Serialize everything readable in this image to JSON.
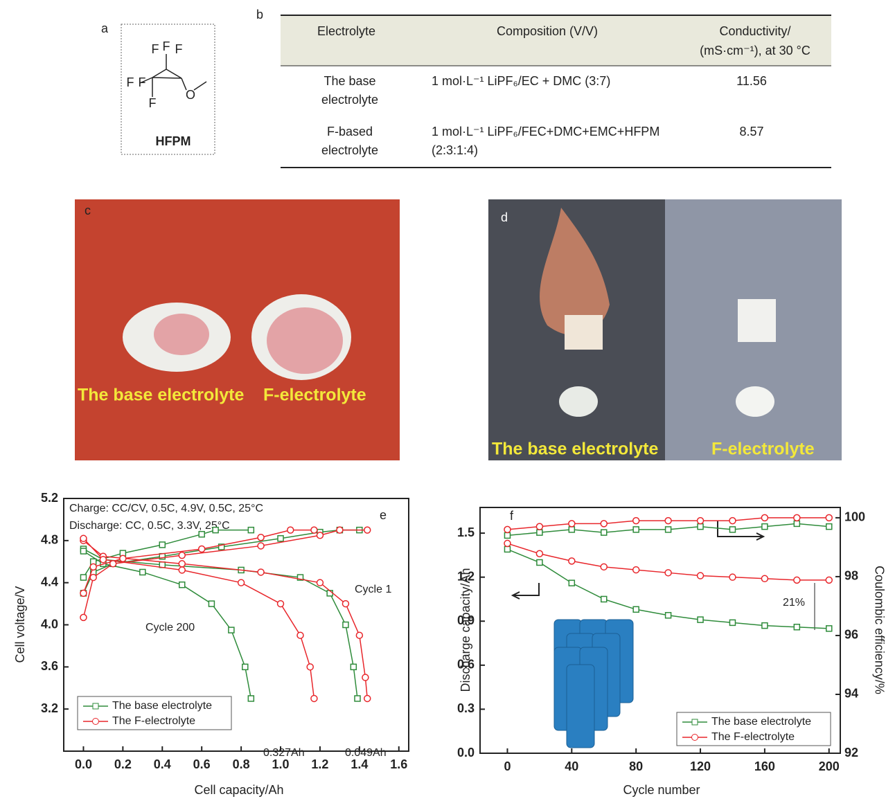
{
  "panel_a": {
    "label": "a",
    "atoms": [
      "F",
      "F",
      "F",
      "F",
      "F",
      "F",
      "O"
    ],
    "name": "HFPM"
  },
  "table": {
    "label": "b",
    "header": [
      "Electrolyte",
      "Composition (V/V)",
      [
        "Conductivity/",
        "(mS·cm⁻¹), at 30 °C"
      ]
    ],
    "rows": [
      [
        [
          "The base",
          "electrolyte"
        ],
        [
          "1 mol·L⁻¹ LiPF₆/EC + DMC (3:7)"
        ],
        11.56
      ],
      [
        [
          "F-based",
          "electrolyte"
        ],
        [
          "1 mol·L⁻¹ LiPF₆/FEC+DMC+EMC+HFPM",
          "(2:3:1:4)"
        ],
        8.57
      ]
    ]
  },
  "photos": [
    {
      "label": "c",
      "captions": [
        "The base electrolyte",
        "F-electrolyte"
      ]
    },
    {
      "label": "d",
      "captions": [
        "The base electrolyte",
        "F-electrolyte"
      ]
    }
  ],
  "chart_data": [
    {
      "type": "line",
      "label": "e",
      "xlabel": "Cell capacity/Ah",
      "ylabel": "Cell voltage/V",
      "xlim": [
        -0.1,
        1.65
      ],
      "ylim": [
        2.8,
        5.2
      ],
      "xticks": [
        {
          "value": 0,
          "label": "0.0"
        },
        0.2,
        0.4,
        0.6,
        0.8,
        {
          "value": 1,
          "label": "1.0"
        },
        1.2,
        1.4,
        1.6
      ],
      "yticks": [
        3.2,
        3.6,
        {
          "value": 4,
          "label": "4.0"
        },
        4.4,
        4.8,
        5.2
      ],
      "annotations": [
        "Charge: CC/CV, 0.5C, 4.9V, 0.5C, 25°C",
        "Discharge: CC, 0.5C, 3.3V, 25°C",
        "Cycle 1",
        "Cycle 200",
        "0.327Ah",
        "0.049Ah"
      ],
      "series": [
        {
          "name": "The base electrolyte",
          "color": "#2e8b3a",
          "marker": "square",
          "x": [
            0,
            0.05,
            0.15,
            0.4,
            0.7,
            1.0,
            1.2,
            1.3,
            1.4,
            null,
            0,
            0.1,
            0.4,
            0.8,
            1.1,
            1.25,
            1.33,
            1.37,
            1.39,
            null,
            0,
            0.05,
            0.2,
            0.4,
            0.6,
            0.67,
            0.85,
            null,
            0,
            0.1,
            0.3,
            0.5,
            0.65,
            0.75,
            0.82,
            0.85
          ],
          "values": [
            4.3,
            4.5,
            4.58,
            4.65,
            4.74,
            4.82,
            4.88,
            4.9,
            4.9,
            null,
            4.72,
            4.62,
            4.57,
            4.52,
            4.45,
            4.3,
            4.0,
            3.6,
            3.3,
            null,
            4.45,
            4.6,
            4.68,
            4.76,
            4.86,
            4.9,
            4.9,
            null,
            4.7,
            4.58,
            4.5,
            4.38,
            4.2,
            3.95,
            3.6,
            3.3
          ]
        },
        {
          "name": "The F-electrolyte",
          "color": "#e8262b",
          "marker": "circle",
          "x": [
            0,
            0.05,
            0.15,
            0.5,
            0.9,
            1.2,
            1.3,
            1.44,
            null,
            0,
            0.1,
            0.5,
            0.9,
            1.2,
            1.33,
            1.4,
            1.43,
            1.44,
            null,
            0,
            0.05,
            0.2,
            0.6,
            0.9,
            1.05,
            1.17,
            null,
            0,
            0.1,
            0.5,
            0.8,
            1.0,
            1.1,
            1.15,
            1.17
          ],
          "values": [
            4.07,
            4.45,
            4.58,
            4.66,
            4.75,
            4.85,
            4.9,
            4.9,
            null,
            4.8,
            4.65,
            4.58,
            4.5,
            4.4,
            4.2,
            3.9,
            3.5,
            3.3,
            null,
            4.3,
            4.55,
            4.63,
            4.72,
            4.83,
            4.9,
            4.9,
            null,
            4.82,
            4.62,
            4.52,
            4.4,
            4.2,
            3.9,
            3.6,
            3.3
          ]
        }
      ]
    },
    {
      "type": "line",
      "label": "f",
      "xlabel": "Cycle number",
      "ylabel": "Discharge capacity/Ah",
      "y2label": "Coulombic efficiency/%",
      "xlim": [
        -17,
        207
      ],
      "ylim": [
        0,
        1.675
      ],
      "y2lim": [
        92,
        100.35
      ],
      "xticks": [
        0,
        40,
        80,
        120,
        160,
        200
      ],
      "yticks": [
        {
          "value": 0,
          "label": "0.0"
        },
        0.3,
        0.6,
        0.9,
        1.2,
        1.5
      ],
      "y2ticks": [
        92,
        94,
        96,
        98,
        100
      ],
      "annotations": [
        "21%"
      ],
      "x": [
        0,
        20,
        40,
        60,
        80,
        100,
        120,
        140,
        160,
        180,
        200
      ],
      "series": [
        {
          "name": "The base electrolyte",
          "color": "#2e8b3a",
          "marker": "square",
          "values": [
            1.39,
            1.3,
            1.16,
            1.05,
            0.98,
            0.94,
            0.91,
            0.89,
            0.87,
            0.86,
            0.85
          ]
        },
        {
          "name": "The F-electrolyte",
          "color": "#e8262b",
          "marker": "circle",
          "values": [
            1.43,
            1.36,
            1.31,
            1.27,
            1.25,
            1.23,
            1.21,
            1.2,
            1.19,
            1.18,
            1.18
          ]
        },
        {
          "name": "The base electrolyte",
          "color": "#2e8b3a",
          "marker": "square",
          "axis": "y2",
          "values": [
            99.4,
            99.5,
            99.6,
            99.5,
            99.6,
            99.6,
            99.7,
            99.6,
            99.7,
            99.8,
            99.7
          ]
        },
        {
          "name": "The F-electrolyte",
          "color": "#e8262b",
          "marker": "circle",
          "axis": "y2",
          "values": [
            99.6,
            99.7,
            99.8,
            99.8,
            99.9,
            99.9,
            99.9,
            99.9,
            100,
            100,
            100
          ]
        }
      ]
    }
  ]
}
